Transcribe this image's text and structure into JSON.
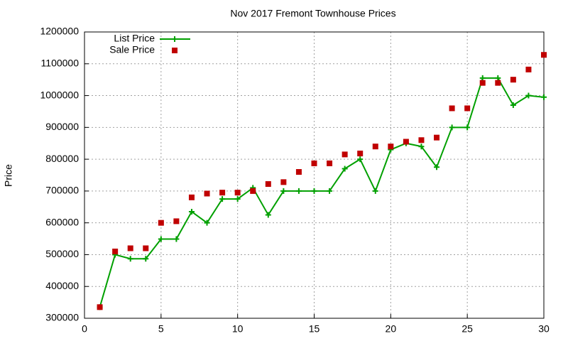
{
  "chart_data": {
    "type": "line",
    "title": "Nov 2017 Fremont Townhouse Prices",
    "y_label": "Price",
    "x": [
      1,
      2,
      3,
      4,
      5,
      6,
      7,
      8,
      9,
      10,
      11,
      12,
      13,
      14,
      15,
      16,
      17,
      18,
      19,
      20,
      21,
      22,
      23,
      24,
      25,
      26,
      27,
      28,
      29,
      30
    ],
    "series": [
      {
        "name": "List Price",
        "color": "#00a000",
        "line": true,
        "marker": "plus",
        "values": [
          335000,
          500000,
          487000,
          487000,
          549000,
          549000,
          635000,
          600000,
          675000,
          675000,
          710000,
          625000,
          700000,
          700000,
          700000,
          700000,
          770000,
          800000,
          700000,
          830000,
          850000,
          840000,
          775000,
          900000,
          900000,
          1055000,
          1055000,
          970000,
          1000000,
          995000
        ]
      },
      {
        "name": "Sale Price",
        "color": "#c00000",
        "line": false,
        "marker": "square",
        "values": [
          335000,
          510000,
          520000,
          520000,
          600000,
          605000,
          680000,
          692000,
          695000,
          695000,
          700000,
          722000,
          728000,
          760000,
          787000,
          787000,
          815000,
          818000,
          840000,
          840000,
          855000,
          860000,
          868000,
          960000,
          960000,
          1040000,
          1040000,
          1050000,
          1082000,
          1128000
        ]
      }
    ],
    "xlim": [
      0,
      30
    ],
    "xticks": [
      0,
      5,
      10,
      15,
      20,
      25,
      30
    ],
    "ylim": [
      300000,
      1200000
    ],
    "yticks": [
      300000,
      400000,
      500000,
      600000,
      700000,
      800000,
      900000,
      1000000,
      1100000,
      1200000
    ],
    "grid": true,
    "legend": "top-left"
  }
}
